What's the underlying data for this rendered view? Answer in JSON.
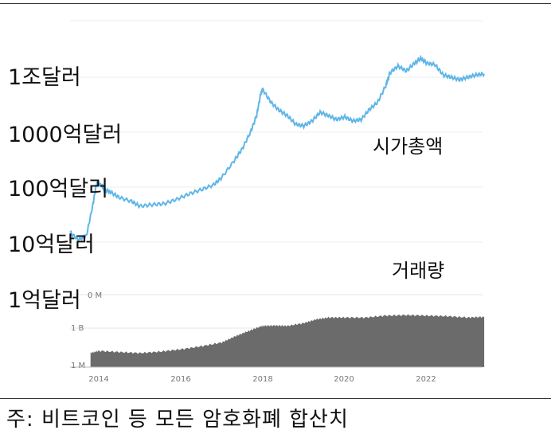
{
  "chart_data": {
    "type": "line",
    "ylabel_scale": "log",
    "y_tick_labels": [
      "1조달러",
      "1000억달러",
      "100억달러",
      "10억달러",
      "1억달러"
    ],
    "x_tick_labels": [
      "2014",
      "2016",
      "2018",
      "2020",
      "2022"
    ],
    "x_range": [
      2013.0,
      2023.5
    ],
    "series": [
      {
        "name": "시가총액",
        "color": "#5fb6e6",
        "x": [
          2013.3,
          2013.5,
          2013.7,
          2013.85,
          2013.95,
          2014.05,
          2014.15,
          2014.3,
          2014.5,
          2014.8,
          2015.0,
          2015.3,
          2015.6,
          2015.9,
          2016.2,
          2016.5,
          2016.8,
          2017.0,
          2017.3,
          2017.5,
          2017.7,
          2017.85,
          2017.95,
          2018.0,
          2018.2,
          2018.4,
          2018.6,
          2018.8,
          2019.0,
          2019.2,
          2019.4,
          2019.6,
          2019.8,
          2020.0,
          2020.2,
          2020.4,
          2020.6,
          2020.8,
          2021.0,
          2021.1,
          2021.3,
          2021.5,
          2021.7,
          2021.85,
          2022.0,
          2022.2,
          2022.4,
          2022.6,
          2022.8,
          2023.0,
          2023.2,
          2023.4
        ],
        "values_usd": [
          1500000000.0,
          1100000000.0,
          1300000000.0,
          4500000000.0,
          12000000000.0,
          11000000000.0,
          9000000000.0,
          8000000000.0,
          6500000000.0,
          5500000000.0,
          4500000000.0,
          4800000000.0,
          5000000000.0,
          6000000000.0,
          7500000000.0,
          9000000000.0,
          11000000000.0,
          15000000000.0,
          30000000000.0,
          50000000000.0,
          100000000000.0,
          200000000000.0,
          500000000000.0,
          600000000000.0,
          350000000000.0,
          250000000000.0,
          200000000000.0,
          140000000000.0,
          130000000000.0,
          160000000000.0,
          230000000000.0,
          200000000000.0,
          170000000000.0,
          190000000000.0,
          160000000000.0,
          170000000000.0,
          260000000000.0,
          350000000000.0,
          700000000000.0,
          1200000000000.0,
          1600000000000.0,
          1300000000000.0,
          1800000000000.0,
          2200000000000.0,
          1800000000000.0,
          1700000000000.0,
          1100000000000.0,
          1000000000000.0,
          900000000000.0,
          1000000000000.0,
          1100000000000.0,
          1150000000000.0
        ]
      },
      {
        "name": "거래량",
        "color": "#6b6b6b",
        "x": [
          2013.8,
          2014.0,
          2014.5,
          2015.0,
          2015.5,
          2016.0,
          2016.5,
          2017.0,
          2017.3,
          2017.6,
          2017.9,
          2018.0,
          2018.3,
          2018.6,
          2019.0,
          2019.3,
          2019.6,
          2020.0,
          2020.5,
          2021.0,
          2021.5,
          2022.0,
          2022.5,
          2023.0,
          2023.4
        ],
        "values_usd": [
          10000000.0,
          15000000.0,
          12000000.0,
          10000000.0,
          13000000.0,
          20000000.0,
          35000000.0,
          70000000.0,
          200000000.0,
          500000000.0,
          1200000000.0,
          1500000000.0,
          1600000000.0,
          1500000000.0,
          2500000000.0,
          5000000000.0,
          7000000000.0,
          7000000000.0,
          7000000000.0,
          10000000000.0,
          11000000000.0,
          10000000000.0,
          9000000000.0,
          7000000000.0,
          8000000000.0
        ]
      }
    ],
    "volume_axis_tick_labels": [
      "1 B",
      "1 M"
    ],
    "volume_axis_partial_label": "0 M"
  },
  "annotations": {
    "market_cap_label": "시가총액",
    "volume_label": "거래량"
  },
  "footnote": "주: 비트코인 등 모든 암호화폐 합산치"
}
